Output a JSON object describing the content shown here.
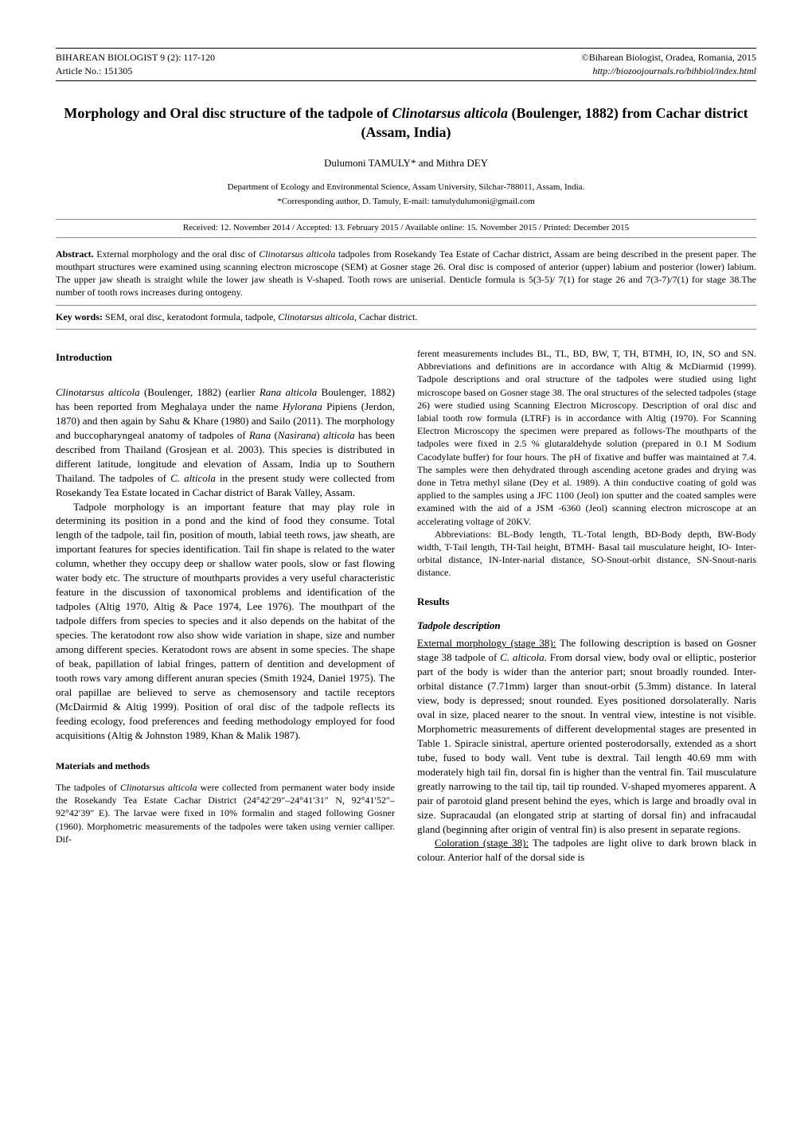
{
  "header": {
    "journal_line": "BIHAREAN BIOLOGIST  9 (2): 117-120",
    "article_no": "Article No.: 151305",
    "copyright": "©Biharean Biologist, Oradea, Romania, 2015",
    "url": "http://biozoojournals.ro/bihbiol/index.html"
  },
  "title_pre": "Morphology and Oral disc structure of the tadpole of ",
  "title_species": "Clinotarsus alticola",
  "title_post": " (Boulenger, 1882) from Cachar district (Assam, India)",
  "authors": "Dulumoni TAMULY*  and  Mithra DEY",
  "affiliation": "Department of Ecology and Environmental Science, Assam University, Silchar-788011, Assam, India.",
  "corresponding": "*Corresponding author, D. Tamuly, E-mail: tamulydulumoni@gmail.com",
  "dates": "Received: 12. November 2014  /  Accepted: 13. February 2015  /  Available online: 15. November 2015  /  Printed: December 2015",
  "abstract": {
    "label": "Abstract.",
    "pre": " External morphology and the oral disc of ",
    "species": "Clinotarsus alticola",
    "post": " tadpoles from Rosekandy Tea Estate of Cachar district, Assam are being described in the present paper. The mouthpart structures were examined using scanning electron microscope (SEM) at Gosner stage 26. Oral disc is composed of anterior (upper) labium and posterior (lower) labium. The upper jaw sheath is straight while the lower jaw sheath is V-shaped. Tooth rows are uniserial. Denticle formula is 5(3-5)/ 7(1) for stage 26 and 7(3-7)/7(1) for stage 38.The number of tooth rows increases during ontogeny."
  },
  "keywords": {
    "label": "Key words:",
    "pre": " SEM, oral disc, keratodont formula, tadpole, ",
    "species": "Clinotarsus alticola",
    "post": ", Cachar district."
  },
  "left": {
    "intro_heading": "Introduction",
    "p1a": "Clinotarsus alticola",
    "p1b": " (Boulenger, 1882) (earlier ",
    "p1c": "Rana alticola",
    "p1d": " Boulenger, 1882) has been reported from Meghalaya under the name ",
    "p1e": "Hylorana",
    "p1f": " Pipiens (Jerdon, 1870) and then again by Sahu & Khare (1980) and Sailo (2011). The morphology and buccopharyngeal anatomy of tadpoles of ",
    "p1g": "Rana",
    "p1h": " (",
    "p1i": "Nasirana",
    "p1j": ") ",
    "p1k": "alticola",
    "p1l": " has been described from Thailand (Grosjean et al. 2003). This species is distributed in different latitude, longitude and elevation of Assam, India up to Southern Thailand. The tadpoles of ",
    "p1m": "C. alticola",
    "p1n": " in the present study were collected from Rosekandy Tea Estate located in Cachar district of Barak Valley, Assam.",
    "p2": "Tadpole morphology is an important feature that may play role in determining its position in a pond and the kind of food they consume. Total length of the tadpole, tail fin, position of mouth, labial teeth rows, jaw sheath, are important features for species identification. Tail fin shape is related to the water column, whether they occupy deep or shallow water pools, slow or fast flowing water body etc. The structure of mouthparts provides a very useful characteristic feature in the discussion of taxonomical problems and identification of the tadpoles (Altig 1970, Altig & Pace 1974, Lee 1976). The mouthpart of the tadpole differs from species to species and it also depends on the habitat of the species. The keratodont row also show wide variation in shape, size and number among different species. Keratodont rows are absent in some species. The shape of beak, papillation of labial fringes, pattern of dentition and development of tooth rows vary among different anuran species (Smith 1924, Daniel 1975). The oral papillae are believed to serve as chemosensory and tactile receptors (McDairmid & Altig 1999). Position of oral disc of the tadpole reflects its feeding ecology, food preferences and feeding methodology employed for food acquisitions (Altig & Johnston 1989, Khan & Malik 1987).",
    "methods_heading": "Materials and methods",
    "m1a": "The tadpoles of ",
    "m1b": "Clinotarsus alticola",
    "m1c": " were collected from permanent water body inside the Rosekandy Tea Estate Cachar District (24°42′29″–24°41′31″ N, 92°41′52″–92°42′39″ E). The larvae were fixed in 10% formalin and staged following Gosner (1960). Morphometric measurements of the tadpoles were taken using vernier calliper. Dif-"
  },
  "right": {
    "m2": "ferent measurements includes BL, TL, BD, BW, T, TH, BTMH, IO, IN, SO and SN. Abbreviations and definitions are in accordance with Altig & McDiarmid (1999). Tadpole descriptions and oral structure of the tadpoles were studied using light microscope based on Gosner stage 38. The oral structures of the selected tadpoles (stage 26) were studied using Scanning Electron Microscopy.  Description of oral disc and labial tooth row formula (LTRF) is in accordance with Altig (1970). For Scanning Electron Microscopy the specimen were prepared as follows-The mouthparts of the tadpoles were fixed in 2.5 % glutaraldehyde solution (prepared in 0.1 M Sodium Cacodylate buffer) for four hours. The pH of fixative and buffer was maintained at 7.4. The samples were then dehydrated through ascending acetone grades and drying was done in Tetra methyl silane (Dey et al. 1989). A thin conductive coating of gold was applied to the samples using a JFC 1100 (Jeol) ion sputter and the coated samples were examined with the aid of a JSM -6360 (Jeol) scanning electron microscope at an accelerating voltage of 20KV.",
    "m3": "Abbreviations: BL-Body length, TL-Total length, BD-Body depth, BW-Body width, T-Tail length, TH-Tail height, BTMH- Basal tail musculature height, IO- Inter-orbital distance, IN-Inter-narial distance, SO-Snout-orbit distance, SN-Snout-naris distance.",
    "results_heading": "Results",
    "tadpole_heading": "Tadpole description",
    "r1_label": "External morphology (stage 38):",
    "r1a": " The following description is based on Gosner stage 38 tadpole of ",
    "r1b": "C. alticola",
    "r1c": ". From dorsal view, body oval or elliptic, posterior part of the body is wider than the anterior part; snout broadly rounded. Inter-orbital distance (7.71mm) larger than snout-orbit (5.3mm) distance. In lateral view, body is depressed; snout rounded. Eyes positioned dorsolaterally. Naris oval in size, placed nearer to the snout. In ventral view, intestine is not visible. Morphometric measurements of different developmental stages are presented in Table 1. Spiracle sinistral, aperture oriented posterodorsally, extended as a short tube, fused to body wall. Vent tube is dextral. Tail length 40.69 mm with moderately high tail fin, dorsal fin is higher than the ventral fin. Tail musculature greatly narrowing to the tail tip, tail tip rounded. V-shaped myomeres apparent. A pair of parotoid gland present behind the eyes, which is large and broadly oval in size.  Supracaudal (an elongated strip at starting of dorsal fin) and infracaudal gland (beginning after origin of ventral fin) is also present in separate regions.",
    "r2_label": "Coloration (stage 38):",
    "r2": " The tadpoles are light olive to dark brown black in colour. Anterior half of the dorsal side is"
  }
}
